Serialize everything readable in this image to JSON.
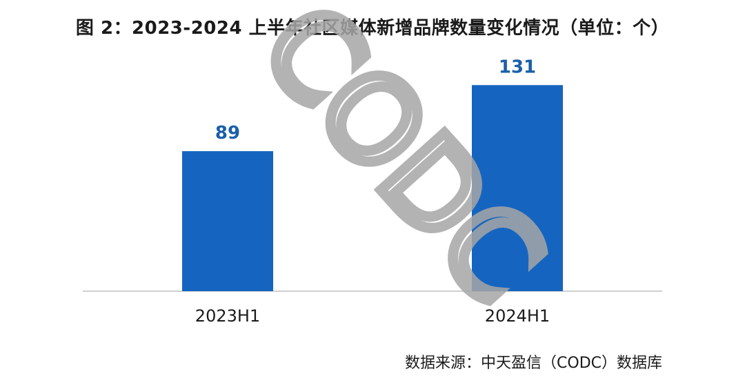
{
  "title": "图 2：2023-2024 上半年社区媒体新增品牌数量变化情况（单位：个）",
  "source": "数据来源：中天盈信（CODC）数据库",
  "watermark": "CODC",
  "colors": {
    "bar": "#1565C0",
    "value_label": "#1A5FA8",
    "axis": "#bfbfbf",
    "watermark": "#a6a6a6"
  },
  "chart_data": {
    "type": "bar",
    "categories": [
      "2023H1",
      "2024H1"
    ],
    "values": [
      89,
      131
    ],
    "value_labels": [
      "89",
      "131"
    ],
    "title": "图 2：2023-2024 上半年社区媒体新增品牌数量变化情况（单位：个）",
    "xlabel": "",
    "ylabel": "",
    "ylim": [
      0,
      150
    ],
    "grid": false,
    "legend": "none"
  }
}
